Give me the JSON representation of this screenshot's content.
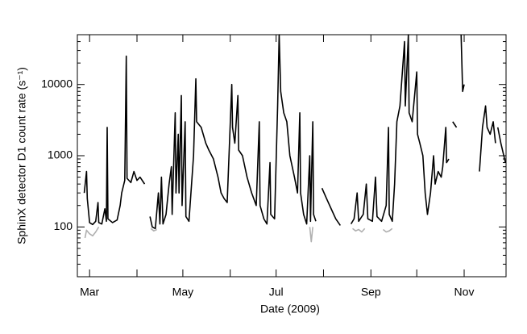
{
  "chart_data": {
    "type": "line",
    "xlabel": "Date (2009)",
    "ylabel": "SphinX detector D1 count rate (s⁻¹)",
    "ylog": true,
    "xlim": [
      52,
      332.4
    ],
    "ylim": [
      20,
      50000
    ],
    "yticks": [
      100,
      1000,
      10000
    ],
    "yminor_ticks": [
      20,
      30,
      40,
      50,
      60,
      70,
      80,
      90,
      200,
      300,
      400,
      500,
      600,
      700,
      800,
      900,
      2000,
      3000,
      4000,
      5000,
      6000,
      7000,
      8000,
      9000,
      20000,
      30000,
      40000
    ],
    "xticks": [
      {
        "value": 60,
        "label": "Mar"
      },
      {
        "value": 121,
        "label": "May"
      },
      {
        "value": 182,
        "label": "Jul"
      },
      {
        "value": 244,
        "label": "Sep"
      },
      {
        "value": 305,
        "label": "Nov"
      }
    ],
    "xminor_ticks": [
      91,
      152,
      213,
      274
    ],
    "series": [
      {
        "color": "#b0b0b0",
        "x": [
          57,
          58,
          60,
          62,
          64,
          66,
          null,
          100,
          102,
          104,
          null,
          204,
          205,
          206,
          null,
          232,
          234,
          236,
          238,
          240,
          null,
          252,
          254,
          256,
          258
        ],
        "values": [
          70,
          90,
          80,
          75,
          85,
          100,
          null,
          95,
          88,
          92,
          null,
          100,
          62,
          100,
          null,
          95,
          88,
          92,
          85,
          95,
          null,
          92,
          85,
          88,
          95
        ]
      },
      {
        "color": "#000000",
        "x": [
          56.5,
          58,
          58.5,
          60,
          62,
          64,
          65.5,
          66,
          68,
          70,
          71,
          71.5,
          72,
          75,
          78,
          80,
          81,
          83,
          84,
          84.5,
          87,
          89,
          91,
          93,
          96,
          null,
          99.5,
          101,
          103,
          105,
          106,
          107,
          108,
          110,
          112,
          113.5,
          114,
          116,
          116.5,
          118,
          118.5,
          120,
          120.5,
          122.5,
          123,
          125,
          128,
          129.5,
          130,
          133,
          136,
          138,
          141,
          144,
          146,
          148,
          150,
          153,
          153.5,
          155,
          157,
          157.5,
          160,
          163,
          166,
          169,
          171,
          171.5,
          174,
          176,
          178,
          178.5,
          181,
          183,
          184,
          185,
          187,
          189,
          191,
          194,
          196,
          197.5,
          198,
          200,
          202,
          204,
          204.5,
          206,
          206.5,
          208,
          null,
          212,
          215,
          218,
          221,
          224,
          null,
          231,
          233,
          235,
          236,
          239,
          241,
          242,
          245,
          247,
          248,
          251,
          254,
          255.5,
          256,
          258,
          259.5,
          261,
          263,
          266,
          266.5,
          268.5,
          269,
          271,
          274,
          274.5,
          276,
          278,
          279.5,
          281,
          283,
          285,
          286,
          288,
          290,
          291,
          293,
          293.5,
          295,
          null,
          297.5,
          300,
          null,
          303,
          304,
          305,
          null,
          315,
          317,
          319,
          320,
          322,
          324,
          325.5,
          null,
          327,
          329,
          332
        ],
        "values": [
          300,
          600,
          250,
          115,
          108,
          120,
          220,
          115,
          110,
          180,
          120,
          2500,
          130,
          115,
          125,
          200,
          300,
          450,
          25000,
          480,
          420,
          600,
          450,
          500,
          400,
          null,
          140,
          100,
          95,
          300,
          110,
          500,
          110,
          150,
          400,
          700,
          150,
          4000,
          300,
          2000,
          300,
          7000,
          200,
          3000,
          140,
          120,
          1000,
          12000,
          3000,
          2500,
          1500,
          1200,
          900,
          500,
          300,
          250,
          220,
          10000,
          2500,
          1500,
          7000,
          1200,
          1000,
          500,
          300,
          200,
          3000,
          200,
          130,
          110,
          800,
          150,
          130,
          5000,
          50000,
          8000,
          4000,
          3000,
          1000,
          500,
          300,
          4000,
          300,
          150,
          110,
          1000,
          120,
          3000,
          150,
          120,
          null,
          350,
          250,
          180,
          130,
          105,
          null,
          110,
          130,
          300,
          120,
          150,
          400,
          130,
          120,
          500,
          140,
          120,
          200,
          2500,
          150,
          120,
          400,
          3000,
          5000,
          40000,
          5000,
          50000,
          4000,
          3000,
          15000,
          2000,
          1500,
          1000,
          300,
          150,
          300,
          1000,
          400,
          600,
          500,
          700,
          2500,
          800,
          900,
          null,
          3000,
          2500,
          null,
          50000,
          8000,
          10000,
          null,
          600,
          2500,
          5000,
          2500,
          2000,
          3000,
          1500,
          null,
          2500,
          1500,
          800
        ]
      }
    ]
  }
}
